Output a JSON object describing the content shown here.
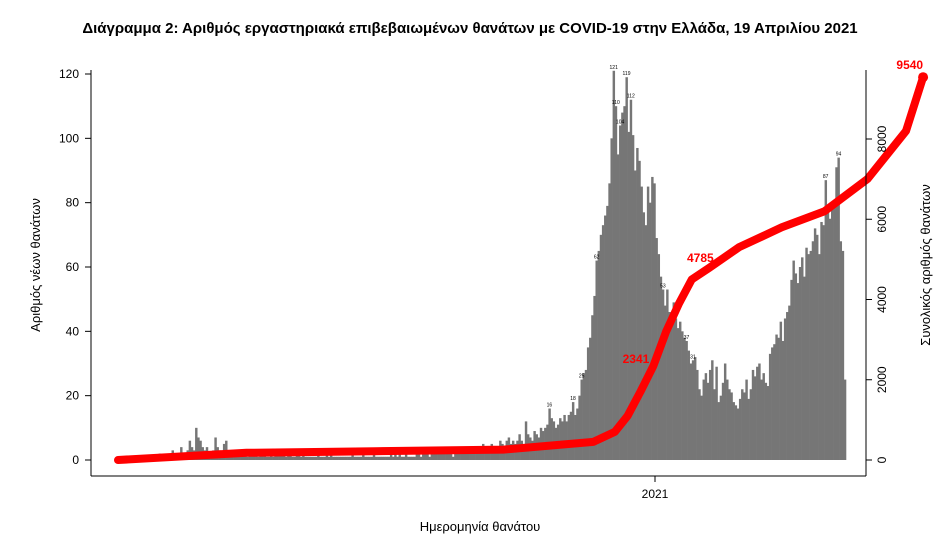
{
  "chart_data": {
    "type": "bar",
    "title": "Διάγραμμα 2: Αριθμός εργαστηριακά επιβεβαιωμένων θανάτων με COVID-19 στην Ελλάδα, 19 Απριλίου 2021",
    "xlabel": "Ημερομηνία θανάτου",
    "ylabel": "Αριθμός νέων θανάτων",
    "y2label": "Συνολικός αριθμός θανάτων",
    "x_ticks": [
      "2021"
    ],
    "y_ticks": [
      0,
      20,
      40,
      60,
      80,
      100,
      120
    ],
    "y2_ticks": [
      0,
      2000,
      4000,
      6000,
      8000
    ],
    "ylim": [
      0,
      122
    ],
    "y2lim": [
      0,
      9700
    ],
    "grid": false,
    "bar_color": "#767676",
    "line_color": "#ff0000",
    "series": [
      {
        "name": "Αριθμός νέων θανάτων",
        "type": "bar",
        "values": [
          1,
          1,
          1,
          1,
          1,
          1,
          1,
          1,
          1,
          1,
          1,
          1,
          1,
          1,
          1,
          1,
          1,
          1,
          1,
          2,
          1,
          1,
          1,
          2,
          1,
          3,
          2,
          1,
          2,
          4,
          2,
          1,
          3,
          6,
          4,
          3,
          10,
          7,
          6,
          4,
          3,
          4,
          2,
          1,
          3,
          7,
          4,
          3,
          2,
          5,
          6,
          2,
          3,
          2,
          1,
          1,
          2,
          3,
          2,
          2,
          1,
          3,
          2,
          2,
          2,
          1,
          2,
          2,
          3,
          1,
          1,
          2,
          1,
          2,
          2,
          3,
          2,
          2,
          1,
          2,
          2,
          1,
          1,
          2,
          2,
          1,
          2,
          1,
          1,
          1,
          1,
          1,
          1,
          2,
          1,
          1,
          1,
          2,
          1,
          2,
          1,
          1,
          1,
          1,
          1,
          1,
          1,
          1,
          1,
          2,
          1,
          1,
          1,
          1,
          2,
          1,
          1,
          1,
          1,
          2,
          1,
          1,
          1,
          1,
          1,
          1,
          1,
          2,
          1,
          2,
          1,
          2,
          1,
          1,
          2,
          1,
          1,
          1,
          1,
          2,
          2,
          1,
          2,
          2,
          2,
          1,
          2,
          2,
          2,
          2,
          3,
          2,
          2,
          2,
          3,
          2,
          1,
          2,
          3,
          3,
          2,
          3,
          2,
          4,
          2,
          3,
          4,
          3,
          3,
          4,
          5,
          3,
          4,
          4,
          5,
          4,
          3,
          4,
          6,
          5,
          4,
          6,
          7,
          5,
          6,
          5,
          6,
          8,
          6,
          5,
          12,
          8,
          7,
          6,
          9,
          8,
          7,
          10,
          9,
          10,
          11,
          16,
          13,
          12,
          10,
          11,
          13,
          12,
          14,
          12,
          14,
          15,
          18,
          14,
          16,
          20,
          25,
          27,
          28,
          35,
          38,
          45,
          51,
          62,
          65,
          70,
          73,
          76,
          79,
          86,
          100,
          121,
          110,
          95,
          104,
          108,
          110,
          119,
          102,
          112,
          101,
          90,
          97,
          93,
          85,
          77,
          73,
          85,
          80,
          88,
          86,
          69,
          64,
          57,
          53,
          48,
          53,
          46,
          44,
          49,
          44,
          41,
          43,
          40,
          38,
          37,
          34,
          30,
          31,
          32,
          28,
          22,
          20,
          25,
          27,
          24,
          28,
          31,
          22,
          29,
          18,
          20,
          24,
          30,
          25,
          22,
          21,
          18,
          17,
          16,
          19,
          22,
          21,
          25,
          19,
          22,
          28,
          26,
          29,
          30,
          25,
          27,
          24,
          23,
          33,
          35,
          36,
          39,
          38,
          43,
          37,
          44,
          46,
          48,
          56,
          62,
          58,
          55,
          60,
          63,
          57,
          66,
          64,
          65,
          68,
          72,
          70,
          64,
          74,
          73,
          87,
          78,
          75,
          80,
          79,
          91,
          94,
          68,
          65,
          25
        ],
        "labels": [
          {
            "v": 18,
            "t": "18"
          },
          {
            "v": 121,
            "t": "121"
          },
          {
            "v": 119,
            "t": "119"
          },
          {
            "v": 110,
            "t": "110"
          },
          {
            "v": 112,
            "t": "112"
          },
          {
            "v": 104,
            "t": "104"
          },
          {
            "v": 94,
            "t": "94"
          },
          {
            "v": 87,
            "t": "87"
          },
          {
            "v": 62,
            "t": "62"
          },
          {
            "v": 53,
            "t": "53"
          },
          {
            "v": 37,
            "t": "37"
          },
          {
            "v": 31,
            "t": "31"
          },
          {
            "v": 16,
            "t": "16"
          },
          {
            "v": 25,
            "t": "25"
          }
        ]
      },
      {
        "name": "Συνολικός αριθμός θανάτων",
        "type": "line",
        "axis": "right",
        "points_x_index": [
          0,
          60,
          120,
          180,
          222,
          232,
          238,
          244,
          250,
          256,
          262,
          268,
          276,
          290,
          310,
          330,
          350,
          368,
          376
        ],
        "points_y": [
          0,
          180,
          220,
          260,
          450,
          700,
          1100,
          1700,
          2341,
          3200,
          3900,
          4500,
          4785,
          5300,
          5800,
          6200,
          7000,
          8200,
          9540
        ]
      }
    ],
    "point_labels": [
      {
        "text": "2341",
        "value": 2341
      },
      {
        "text": "4785",
        "value": 4785
      },
      {
        "text": "9540",
        "value": 9540
      }
    ]
  }
}
